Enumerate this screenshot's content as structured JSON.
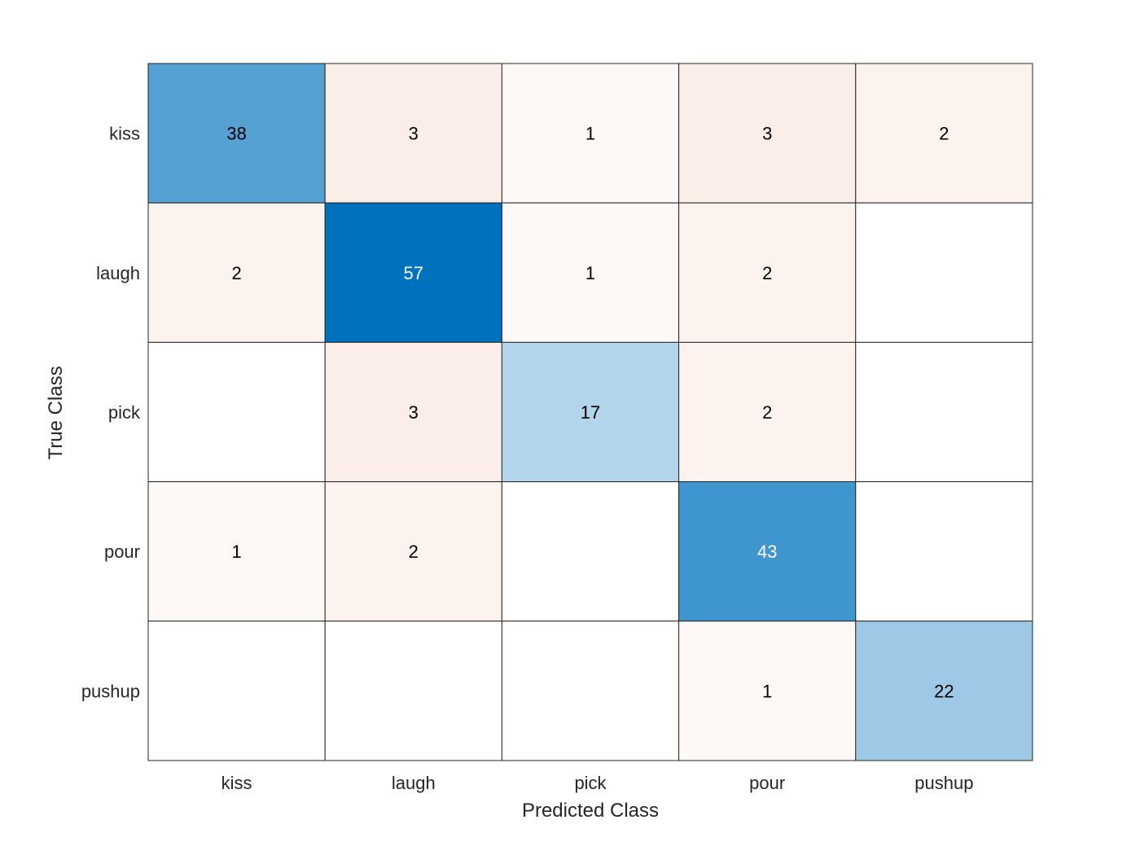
{
  "chart_data": {
    "type": "heatmap",
    "subtype": "confusion-matrix",
    "xlabel": "Predicted Class",
    "ylabel": "True Class",
    "row_labels": [
      "kiss",
      "laugh",
      "pick",
      "pour",
      "pushup"
    ],
    "col_labels": [
      "kiss",
      "laugh",
      "pick",
      "pour",
      "pushup"
    ],
    "values": [
      [
        38,
        3,
        1,
        3,
        2
      ],
      [
        2,
        57,
        1,
        2,
        null
      ],
      [
        null,
        3,
        17,
        2,
        null
      ],
      [
        1,
        2,
        null,
        43,
        null
      ],
      [
        null,
        null,
        null,
        1,
        22
      ]
    ],
    "colors": {
      "diagonal": "#0072BD",
      "off_diagonal": "#D95319",
      "grid": "#262626"
    }
  }
}
